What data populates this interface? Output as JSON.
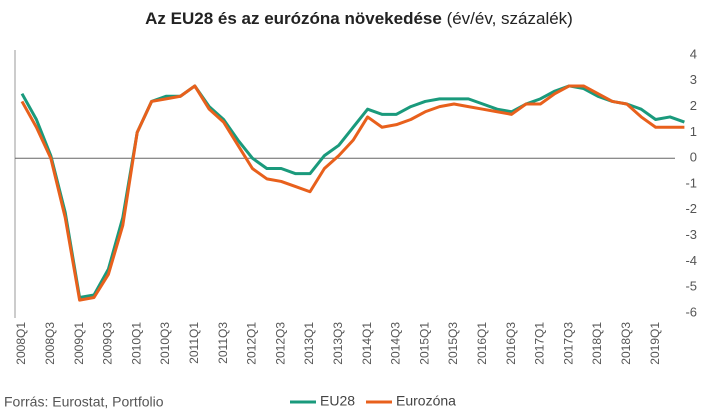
{
  "chart_data": {
    "type": "line",
    "title": "Az EU28 és az eurózóna növekedése",
    "subtitle": "(év/év, százalék)",
    "source": "Forrás: Eurostat, Portfolio",
    "categories": [
      "2008Q1",
      null,
      "2008Q3",
      null,
      "2009Q1",
      null,
      "2009Q3",
      null,
      "2010Q1",
      null,
      "2010Q3",
      null,
      "2011Q1",
      null,
      "2011Q3",
      null,
      "2012Q1",
      null,
      "2012Q3",
      null,
      "2013Q1",
      null,
      "2013Q3",
      null,
      "2014Q1",
      null,
      "2014Q3",
      null,
      "2015Q1",
      null,
      "2015Q3",
      null,
      "2016Q1",
      null,
      "2016Q3",
      null,
      "2017Q1",
      null,
      "2017Q3",
      null,
      "2018Q1",
      null,
      "2018Q3",
      null,
      "2019Q1",
      null,
      null
    ],
    "series": [
      {
        "name": "EU28",
        "color": "#1a9a7c",
        "values": [
          2.5,
          1.5,
          0.1,
          -2.1,
          -5.4,
          -5.3,
          -4.3,
          -2.3,
          1.0,
          2.2,
          2.4,
          2.4,
          2.8,
          2.0,
          1.5,
          0.7,
          0.0,
          -0.4,
          -0.4,
          -0.6,
          -0.6,
          0.1,
          0.5,
          1.2,
          1.9,
          1.7,
          1.7,
          2.0,
          2.2,
          2.3,
          2.3,
          2.3,
          2.1,
          1.9,
          1.8,
          2.1,
          2.3,
          2.6,
          2.8,
          2.7,
          2.4,
          2.2,
          2.1,
          1.9,
          1.5,
          1.6,
          1.4
        ]
      },
      {
        "name": "Eurozóna",
        "color": "#e8601c",
        "values": [
          2.2,
          1.2,
          0.0,
          -2.3,
          -5.5,
          -5.4,
          -4.5,
          -2.6,
          1.0,
          2.2,
          2.3,
          2.4,
          2.8,
          1.9,
          1.4,
          0.5,
          -0.4,
          -0.8,
          -0.9,
          -1.1,
          -1.3,
          -0.4,
          0.1,
          0.7,
          1.6,
          1.2,
          1.3,
          1.5,
          1.8,
          2.0,
          2.1,
          2.0,
          1.9,
          1.8,
          1.7,
          2.1,
          2.1,
          2.5,
          2.8,
          2.8,
          2.5,
          2.2,
          2.1,
          1.6,
          1.2,
          1.2,
          1.2
        ]
      }
    ],
    "ylim": [
      -6,
      4
    ],
    "yticks": [
      -6,
      -5,
      -4,
      -3,
      -2,
      -1,
      0,
      1,
      2,
      3,
      4
    ],
    "grid": false,
    "legend": "bottom"
  }
}
